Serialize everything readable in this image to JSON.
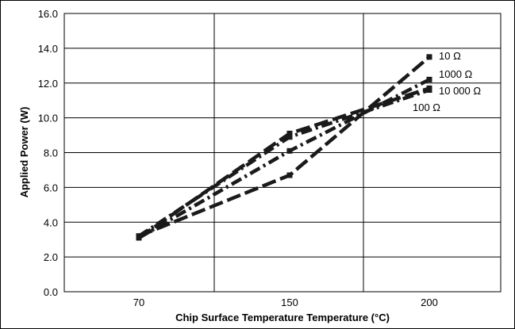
{
  "chart_data": {
    "type": "line",
    "xlabel": "Chip Surface Temperature Temperature (°C)",
    "ylabel": "Applied Power (W)",
    "categories": [
      "70",
      "150",
      "200"
    ],
    "ylim": [
      0,
      16
    ],
    "yticks": [
      "0.0",
      "2.0",
      "4.0",
      "6.0",
      "8.0",
      "10.0",
      "12.0",
      "14.0",
      "16.0"
    ],
    "grid": true,
    "series": [
      {
        "name": "10 Ω",
        "values": [
          3.2,
          6.7,
          13.5
        ],
        "dash": "long"
      },
      {
        "name": "1000 Ω",
        "values": [
          3.1,
          8.1,
          12.2
        ],
        "dash": "dashdot"
      },
      {
        "name": "10 000 Ω",
        "values": [
          3.2,
          8.9,
          11.6
        ],
        "dash": "dashdot"
      },
      {
        "name": "100 Ω",
        "values": [
          3.1,
          9.1,
          11.7
        ],
        "dash": "long"
      }
    ]
  }
}
